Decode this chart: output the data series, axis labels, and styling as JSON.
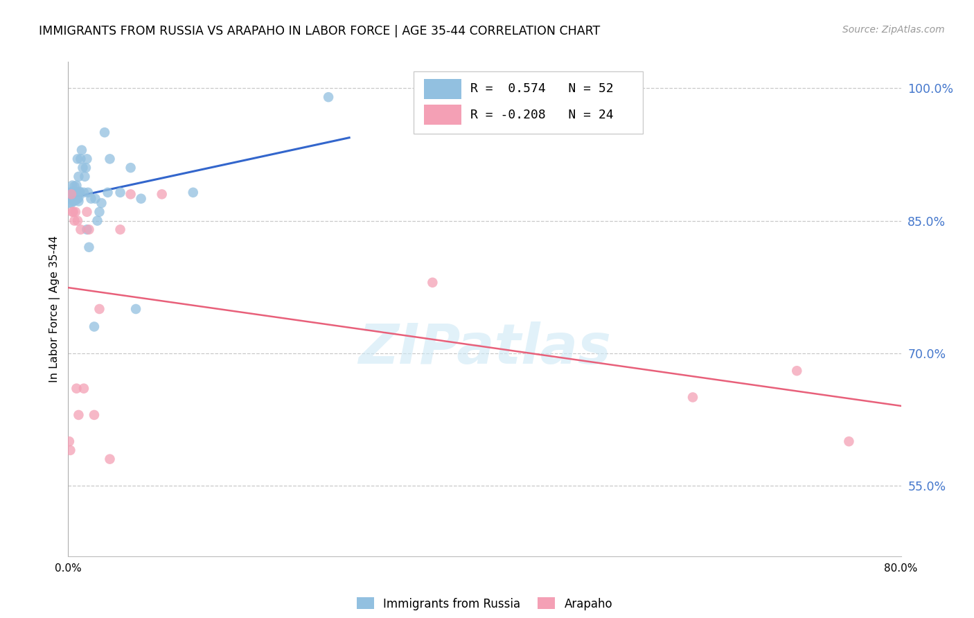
{
  "title": "IMMIGRANTS FROM RUSSIA VS ARAPAHO IN LABOR FORCE | AGE 35-44 CORRELATION CHART",
  "source": "Source: ZipAtlas.com",
  "ylabel": "In Labor Force | Age 35-44",
  "xlim": [
    0.0,
    0.8
  ],
  "ylim": [
    0.47,
    1.03
  ],
  "y_ticks": [
    0.55,
    0.7,
    0.85,
    1.0
  ],
  "y_tick_labels": [
    "55.0%",
    "70.0%",
    "85.0%",
    "100.0%"
  ],
  "x_tick_positions": [
    0.0,
    0.2,
    0.4,
    0.6,
    0.8
  ],
  "x_tick_labels": [
    "0.0%",
    "",
    "",
    "",
    "80.0%"
  ],
  "russia_R": 0.574,
  "russia_N": 52,
  "arapaho_R": -0.208,
  "arapaho_N": 24,
  "russia_color": "#92c0e0",
  "arapaho_color": "#f4a0b5",
  "russia_line_color": "#3366cc",
  "arapaho_line_color": "#e8607a",
  "watermark": "ZIPatlas",
  "russia_x": [
    0.001,
    0.002,
    0.002,
    0.003,
    0.003,
    0.003,
    0.004,
    0.004,
    0.004,
    0.005,
    0.005,
    0.005,
    0.005,
    0.006,
    0.006,
    0.006,
    0.007,
    0.007,
    0.008,
    0.008,
    0.009,
    0.009,
    0.01,
    0.01,
    0.01,
    0.011,
    0.011,
    0.012,
    0.013,
    0.014,
    0.015,
    0.016,
    0.017,
    0.018,
    0.018,
    0.019,
    0.02,
    0.022,
    0.025,
    0.026,
    0.028,
    0.03,
    0.032,
    0.035,
    0.038,
    0.04,
    0.05,
    0.06,
    0.065,
    0.07,
    0.12,
    0.25
  ],
  "russia_y": [
    0.87,
    0.88,
    0.882,
    0.882,
    0.87,
    0.881,
    0.882,
    0.883,
    0.89,
    0.872,
    0.875,
    0.878,
    0.883,
    0.879,
    0.881,
    0.889,
    0.873,
    0.882,
    0.882,
    0.89,
    0.92,
    0.875,
    0.872,
    0.876,
    0.9,
    0.882,
    0.883,
    0.92,
    0.93,
    0.91,
    0.882,
    0.9,
    0.91,
    0.92,
    0.84,
    0.882,
    0.82,
    0.875,
    0.73,
    0.875,
    0.85,
    0.86,
    0.87,
    0.95,
    0.882,
    0.92,
    0.882,
    0.91,
    0.75,
    0.875,
    0.882,
    0.99
  ],
  "arapaho_x": [
    0.001,
    0.002,
    0.003,
    0.004,
    0.005,
    0.006,
    0.007,
    0.008,
    0.009,
    0.01,
    0.012,
    0.015,
    0.018,
    0.02,
    0.025,
    0.03,
    0.04,
    0.05,
    0.06,
    0.09,
    0.35,
    0.6,
    0.7,
    0.75
  ],
  "arapaho_y": [
    0.6,
    0.59,
    0.88,
    0.86,
    0.86,
    0.85,
    0.86,
    0.66,
    0.85,
    0.63,
    0.84,
    0.66,
    0.86,
    0.84,
    0.63,
    0.75,
    0.58,
    0.84,
    0.88,
    0.88,
    0.78,
    0.65,
    0.68,
    0.6
  ],
  "legend_russia_label": "R =  0.574   N = 52",
  "legend_arapaho_label": "R = -0.208   N = 24"
}
